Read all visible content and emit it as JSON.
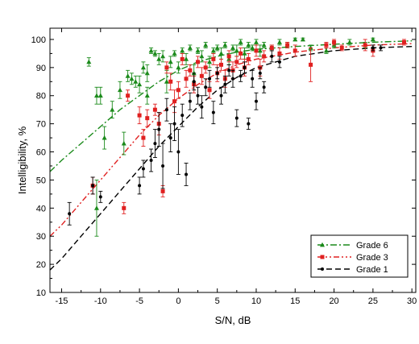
{
  "chart_data": {
    "type": "scatter",
    "title": "",
    "xlabel": "S/N, dB",
    "ylabel": "Intelligibility, %",
    "xlim": [
      -16.5,
      30.5
    ],
    "ylim": [
      10,
      104
    ],
    "xticks": [
      -15,
      -10,
      -5,
      0,
      5,
      10,
      15,
      20,
      25,
      30
    ],
    "yticks": [
      10,
      20,
      30,
      40,
      50,
      60,
      70,
      80,
      90,
      100
    ],
    "grid": false,
    "legend_position": "bottom-right",
    "series": [
      {
        "name": "Grade 6",
        "color": "#1a8a1a",
        "marker": "triangle",
        "line_style": "dash-dot",
        "points": [
          [
            -11.5,
            92,
            1.5
          ],
          [
            -10.5,
            80,
            3
          ],
          [
            -10,
            80,
            3
          ],
          [
            -9.5,
            65,
            4
          ],
          [
            -10.5,
            40,
            10
          ],
          [
            -8.5,
            75,
            3
          ],
          [
            -7.5,
            82,
            3
          ],
          [
            -7,
            63,
            4
          ],
          [
            -6.5,
            87,
            2
          ],
          [
            -6,
            86,
            2
          ],
          [
            -5.5,
            85,
            2
          ],
          [
            -5,
            84,
            3
          ],
          [
            -4.5,
            90,
            2
          ],
          [
            -4,
            88,
            3
          ],
          [
            -4,
            80,
            3
          ],
          [
            -3.5,
            96,
            1
          ],
          [
            -3,
            95,
            1
          ],
          [
            -2.5,
            93,
            2
          ],
          [
            -2,
            94,
            2
          ],
          [
            -1.5,
            85,
            4
          ],
          [
            -1,
            92,
            2
          ],
          [
            -0.5,
            95,
            1
          ],
          [
            0,
            90,
            2
          ],
          [
            0.5,
            96,
            1
          ],
          [
            1,
            93,
            2
          ],
          [
            1.5,
            97,
            1
          ],
          [
            2,
            88,
            3
          ],
          [
            2.5,
            96,
            1
          ],
          [
            3,
            94,
            2
          ],
          [
            3.5,
            98,
            1
          ],
          [
            4,
            92,
            2
          ],
          [
            4.5,
            96,
            1
          ],
          [
            5,
            97,
            1
          ],
          [
            5.5,
            95,
            2
          ],
          [
            6,
            98,
            1
          ],
          [
            6.5,
            93,
            2
          ],
          [
            7,
            97,
            1
          ],
          [
            7.5,
            96,
            2
          ],
          [
            8,
            99,
            1
          ],
          [
            8.5,
            95,
            2
          ],
          [
            9,
            98,
            1
          ],
          [
            9.5,
            97,
            1
          ],
          [
            10,
            99,
            1
          ],
          [
            10.5,
            96,
            2
          ],
          [
            11,
            98,
            1
          ],
          [
            12,
            97,
            1
          ],
          [
            13,
            99,
            1
          ],
          [
            14,
            98,
            1
          ],
          [
            15,
            100,
            0.5
          ],
          [
            16,
            100,
            0.5
          ],
          [
            17,
            97,
            1
          ],
          [
            19,
            96,
            1
          ],
          [
            20,
            98,
            1
          ],
          [
            22,
            99,
            1
          ],
          [
            24,
            98,
            1
          ],
          [
            25,
            100,
            0.5
          ]
        ],
        "fit_curve": [
          [
            -16.5,
            53
          ],
          [
            -15,
            57
          ],
          [
            -12.5,
            63
          ],
          [
            -10,
            69
          ],
          [
            -7.5,
            75
          ],
          [
            -5,
            80
          ],
          [
            -2.5,
            85
          ],
          [
            0,
            89
          ],
          [
            2.5,
            92
          ],
          [
            5,
            94
          ],
          [
            7.5,
            95.5
          ],
          [
            10,
            96.5
          ],
          [
            15,
            97.5
          ],
          [
            20,
            98.3
          ],
          [
            25,
            99
          ],
          [
            30,
            99.5
          ]
        ]
      },
      {
        "name": "Grade 3",
        "color": "#e02020",
        "marker": "square",
        "line_style": "dash-dot-dot",
        "points": [
          [
            -11,
            48,
            3
          ],
          [
            -7,
            40,
            2
          ],
          [
            -6.5,
            80,
            2
          ],
          [
            -5,
            73,
            3
          ],
          [
            -4.5,
            65,
            3
          ],
          [
            -4,
            72,
            3
          ],
          [
            -3,
            75,
            2
          ],
          [
            -2.5,
            70,
            4
          ],
          [
            -2,
            46,
            2
          ],
          [
            -1.5,
            90,
            2
          ],
          [
            -1,
            85,
            3
          ],
          [
            -0.5,
            78,
            4
          ],
          [
            0,
            82,
            3
          ],
          [
            0.5,
            93,
            2
          ],
          [
            1,
            86,
            3
          ],
          [
            1.5,
            89,
            2
          ],
          [
            2,
            84,
            3
          ],
          [
            2.5,
            92,
            2
          ],
          [
            3,
            87,
            3
          ],
          [
            3.5,
            90,
            2
          ],
          [
            4,
            82,
            3
          ],
          [
            4.5,
            93,
            2
          ],
          [
            5,
            88,
            3
          ],
          [
            5.5,
            91,
            2
          ],
          [
            6,
            86,
            3
          ],
          [
            6.5,
            94,
            2
          ],
          [
            7,
            89,
            3
          ],
          [
            7.5,
            92,
            2
          ],
          [
            8,
            95,
            2
          ],
          [
            8.5,
            90,
            3
          ],
          [
            9,
            93,
            2
          ],
          [
            10,
            96,
            2
          ],
          [
            10.5,
            90,
            3
          ],
          [
            11,
            94,
            2
          ],
          [
            12,
            97,
            1
          ],
          [
            13,
            95,
            2
          ],
          [
            14,
            98,
            1
          ],
          [
            15,
            96,
            2
          ],
          [
            17,
            91,
            6
          ],
          [
            19,
            98,
            1
          ],
          [
            20,
            99,
            1
          ],
          [
            21,
            97,
            1
          ],
          [
            24,
            98,
            2
          ],
          [
            25,
            96,
            2
          ],
          [
            29,
            99,
            1
          ]
        ],
        "fit_curve": [
          [
            -16.5,
            30
          ],
          [
            -15,
            34
          ],
          [
            -12.5,
            42
          ],
          [
            -10,
            50
          ],
          [
            -7.5,
            58
          ],
          [
            -5,
            66
          ],
          [
            -2.5,
            73
          ],
          [
            0,
            79
          ],
          [
            2.5,
            84
          ],
          [
            5,
            88
          ],
          [
            7.5,
            91
          ],
          [
            10,
            93
          ],
          [
            15,
            95.5
          ],
          [
            20,
            97
          ],
          [
            25,
            98
          ],
          [
            30,
            98.5
          ]
        ]
      },
      {
        "name": "Grade 1",
        "color": "#000000",
        "marker": "circle",
        "line_style": "dashed",
        "points": [
          [
            -14,
            38,
            4
          ],
          [
            -11,
            48,
            3
          ],
          [
            -10,
            44,
            2
          ],
          [
            -5,
            48,
            3
          ],
          [
            -4.5,
            54,
            3
          ],
          [
            -3.5,
            57,
            4
          ],
          [
            -3,
            63,
            5
          ],
          [
            -2.5,
            68,
            6
          ],
          [
            -2,
            55,
            8
          ],
          [
            -1.5,
            75,
            4
          ],
          [
            -1,
            65,
            5
          ],
          [
            -0.5,
            70,
            6
          ],
          [
            0,
            60,
            8
          ],
          [
            0.5,
            73,
            4
          ],
          [
            1,
            52,
            4
          ],
          [
            1.5,
            78,
            3
          ],
          [
            2,
            85,
            3
          ],
          [
            2.5,
            80,
            3
          ],
          [
            3,
            76,
            4
          ],
          [
            3.5,
            83,
            3
          ],
          [
            4,
            86,
            3
          ],
          [
            4.5,
            74,
            4
          ],
          [
            5,
            88,
            2
          ],
          [
            5.5,
            80,
            3
          ],
          [
            6,
            84,
            3
          ],
          [
            6.5,
            89,
            2
          ],
          [
            7,
            86,
            3
          ],
          [
            7.5,
            72,
            3
          ],
          [
            8,
            87,
            2
          ],
          [
            8.5,
            90,
            2
          ],
          [
            9,
            70,
            2
          ],
          [
            9.5,
            86,
            3
          ],
          [
            10,
            78,
            3
          ],
          [
            10.5,
            88,
            2
          ],
          [
            11,
            83,
            2
          ],
          [
            12,
            94,
            2
          ],
          [
            13,
            92,
            2
          ],
          [
            25,
            97,
            1
          ],
          [
            26,
            97,
            1
          ]
        ],
        "fit_curve": [
          [
            -16.5,
            18
          ],
          [
            -15,
            22
          ],
          [
            -12.5,
            30
          ],
          [
            -10,
            38
          ],
          [
            -7.5,
            46
          ],
          [
            -5,
            54
          ],
          [
            -2.5,
            62
          ],
          [
            0,
            69
          ],
          [
            2.5,
            76
          ],
          [
            5,
            82
          ],
          [
            7.5,
            86.5
          ],
          [
            10,
            90
          ],
          [
            15,
            94
          ],
          [
            20,
            96
          ],
          [
            25,
            97
          ],
          [
            30,
            97.5
          ]
        ]
      }
    ]
  }
}
